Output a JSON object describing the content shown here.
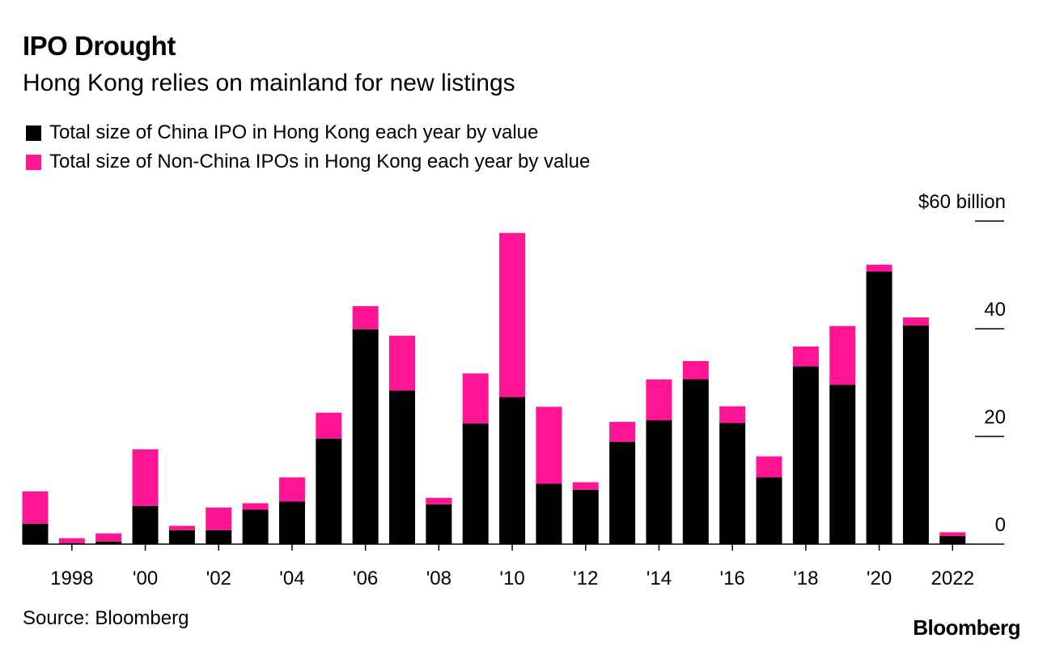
{
  "header": {
    "title": "IPO Drought",
    "subtitle": "Hong Kong relies on mainland for new listings"
  },
  "legend": {
    "items": [
      {
        "label": "Total size of China IPO in Hong Kong each year by value",
        "color": "#000000"
      },
      {
        "label": "Total size of Non-China IPOs in Hong Kong each year by value",
        "color": "#ff1493"
      }
    ]
  },
  "footer": {
    "source": "Source: Bloomberg",
    "brand": "Bloomberg"
  },
  "chart_data": {
    "type": "bar",
    "stacked": true,
    "categories": [
      1997,
      1998,
      1999,
      2000,
      2001,
      2002,
      2003,
      2004,
      2005,
      2006,
      2007,
      2008,
      2009,
      2010,
      2011,
      2012,
      2013,
      2014,
      2015,
      2016,
      2017,
      2018,
      2019,
      2020,
      2021,
      2022
    ],
    "x_tick_labels": [
      {
        "year": 1998,
        "label": "1998"
      },
      {
        "year": 2000,
        "label": "'00"
      },
      {
        "year": 2002,
        "label": "'02"
      },
      {
        "year": 2004,
        "label": "'04"
      },
      {
        "year": 2006,
        "label": "'06"
      },
      {
        "year": 2008,
        "label": "'08"
      },
      {
        "year": 2010,
        "label": "'10"
      },
      {
        "year": 2012,
        "label": "'12"
      },
      {
        "year": 2014,
        "label": "'14"
      },
      {
        "year": 2016,
        "label": "'16"
      },
      {
        "year": 2018,
        "label": "'18"
      },
      {
        "year": 2020,
        "label": "'20"
      },
      {
        "year": 2022,
        "label": "2022"
      }
    ],
    "series": [
      {
        "name": "Total size of China IPO in Hong Kong each year by value",
        "color": "#000000",
        "values": [
          3.8,
          0.2,
          0.5,
          7.1,
          2.6,
          2.6,
          6.4,
          7.9,
          19.6,
          39.9,
          28.5,
          7.4,
          22.4,
          27.3,
          11.2,
          10.1,
          19.0,
          23.0,
          30.6,
          22.5,
          12.4,
          33.0,
          29.6,
          50.6,
          40.6,
          1.5
        ]
      },
      {
        "name": "Total size of Non-China IPOs in Hong Kong each year by value",
        "color": "#ff1493",
        "values": [
          6.0,
          0.9,
          1.5,
          10.5,
          0.8,
          4.2,
          1.2,
          4.5,
          4.8,
          4.3,
          10.2,
          1.2,
          9.3,
          30.5,
          14.3,
          1.4,
          3.7,
          7.6,
          3.4,
          3.1,
          3.9,
          3.7,
          10.9,
          1.3,
          1.5,
          0.7
        ]
      }
    ],
    "ylim": [
      0,
      60
    ],
    "y_ticks": [
      {
        "value": 0,
        "label": "0"
      },
      {
        "value": 20,
        "label": "20"
      },
      {
        "value": 40,
        "label": "40"
      },
      {
        "value": 60,
        "label": "$60 billion"
      }
    ],
    "y_axis_side": "right",
    "grid": false,
    "legend_position": "top-left"
  }
}
